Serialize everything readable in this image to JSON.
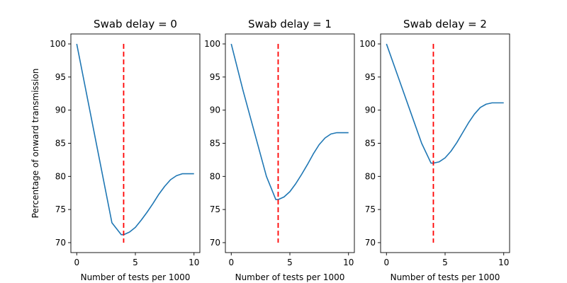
{
  "chart_data": [
    {
      "type": "line",
      "title": "Swab delay = 0",
      "xlabel": "Number of tests per 1000",
      "ylabel": "Percentage of onward transmission",
      "xlim": [
        -0.5,
        10.5
      ],
      "ylim": [
        68.5,
        101.5
      ],
      "xticks": [
        0,
        5,
        10
      ],
      "yticks": [
        70,
        75,
        80,
        85,
        90,
        95,
        100
      ],
      "grid": false,
      "series": [
        {
          "color": "#1f77b4",
          "x": [
            0,
            1,
            2,
            3,
            3.8,
            4,
            4.5,
            5,
            5.5,
            6,
            6.5,
            7,
            7.5,
            8,
            8.5,
            9,
            9.5,
            10
          ],
          "y": [
            100,
            91,
            82,
            73,
            71.2,
            71.2,
            71.6,
            72.3,
            73.4,
            74.6,
            75.9,
            77.3,
            78.5,
            79.5,
            80.1,
            80.4,
            80.4,
            80.4
          ]
        }
      ],
      "vline": {
        "x": 4,
        "ymin": 70,
        "ymax": 100,
        "color": "#ff0000",
        "style": "dashed"
      }
    },
    {
      "type": "line",
      "title": "Swab delay = 1",
      "xlabel": "Number of tests per 1000",
      "ylabel": "",
      "xlim": [
        -0.5,
        10.5
      ],
      "ylim": [
        68.5,
        101.5
      ],
      "xticks": [
        0,
        5,
        10
      ],
      "yticks": [
        70,
        75,
        80,
        85,
        90,
        95,
        100
      ],
      "grid": false,
      "series": [
        {
          "color": "#1f77b4",
          "x": [
            0,
            1,
            2,
            3,
            3.8,
            4,
            4.5,
            5,
            5.5,
            6,
            6.5,
            7,
            7.5,
            8,
            8.5,
            9,
            9.5,
            10
          ],
          "y": [
            100,
            93,
            86.5,
            80,
            76.5,
            76.5,
            76.9,
            77.7,
            78.9,
            80.3,
            81.8,
            83.4,
            84.8,
            85.8,
            86.4,
            86.6,
            86.6,
            86.6
          ]
        }
      ],
      "vline": {
        "x": 4,
        "ymin": 70,
        "ymax": 100,
        "color": "#ff0000",
        "style": "dashed"
      }
    },
    {
      "type": "line",
      "title": "Swab delay = 2",
      "xlabel": "Number of tests per 1000",
      "ylabel": "",
      "xlim": [
        -0.5,
        10.5
      ],
      "ylim": [
        68.5,
        101.5
      ],
      "xticks": [
        0,
        5,
        10
      ],
      "yticks": [
        70,
        75,
        80,
        85,
        90,
        95,
        100
      ],
      "grid": false,
      "series": [
        {
          "color": "#1f77b4",
          "x": [
            0,
            1,
            2,
            3,
            3.8,
            4,
            4.5,
            5,
            5.5,
            6,
            6.5,
            7,
            7.5,
            8,
            8.5,
            9,
            9.5,
            10
          ],
          "y": [
            100,
            95,
            90,
            85,
            82,
            82,
            82.2,
            82.8,
            83.8,
            85.1,
            86.6,
            88.1,
            89.4,
            90.4,
            90.9,
            91.1,
            91.1,
            91.1
          ]
        }
      ],
      "vline": {
        "x": 4,
        "ymin": 70,
        "ymax": 100,
        "color": "#ff0000",
        "style": "dashed"
      }
    }
  ]
}
